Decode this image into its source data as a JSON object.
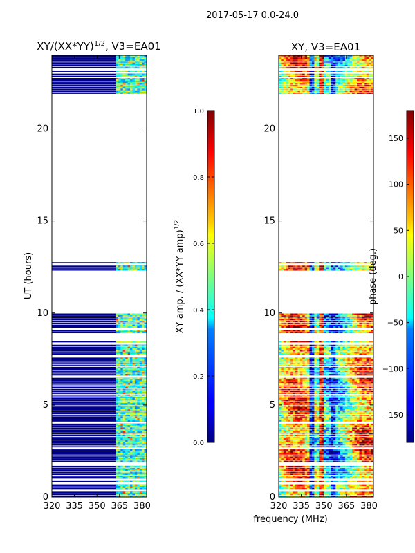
{
  "figure": {
    "suptitle": "2017-05-17 0.0-24.0",
    "shared_xlabel": "frequency (MHz)",
    "ylabel": "UT (hours)"
  },
  "chart_data": [
    {
      "type": "heatmap",
      "panel": "left",
      "title_main": "XY/(XX*YY)",
      "title_sup": "1/2",
      "title_tail": ", V3=EA01",
      "x_ticks": [
        320,
        335,
        350,
        365,
        380
      ],
      "y_ticks": [
        0,
        5,
        10,
        15,
        20
      ],
      "xlim": [
        320,
        383
      ],
      "ylim": [
        0,
        24
      ],
      "colormap": "jet",
      "data_bands_ut": [
        [
          0.0,
          10.0
        ],
        [
          12.3,
          12.8
        ],
        [
          21.8,
          24.0
        ]
      ],
      "active_freq_range_mhz": [
        361,
        382
      ],
      "colorbar": {
        "label_main": "XY amp. / (XX*YY amp)",
        "label_sup": "1/2",
        "range": [
          0.0,
          1.0
        ],
        "ticks": [
          "0.0",
          "0.2",
          "0.4",
          "0.6",
          "0.8",
          "1.0"
        ]
      }
    },
    {
      "type": "heatmap",
      "panel": "right",
      "title": "XY, V3=EA01",
      "x_ticks": [
        320,
        335,
        350,
        365,
        380
      ],
      "y_ticks": [
        0,
        5,
        10,
        15,
        20
      ],
      "xlim": [
        320,
        383
      ],
      "ylim": [
        0,
        24
      ],
      "colormap": "jet",
      "data_bands_ut": [
        [
          0.0,
          10.0
        ],
        [
          12.3,
          12.8
        ],
        [
          21.8,
          24.0
        ]
      ],
      "colorbar": {
        "label": "phase (deg.)",
        "range": [
          -180,
          180
        ],
        "ticks": [
          "150",
          "100",
          "50",
          "0",
          "−50",
          "−100",
          "−150"
        ],
        "tick_values": [
          150,
          100,
          50,
          0,
          -50,
          -100,
          -150
        ]
      }
    }
  ]
}
